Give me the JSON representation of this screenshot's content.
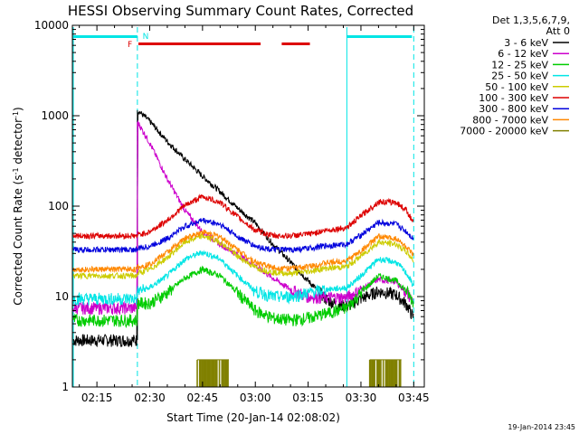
{
  "chart_data": {
    "type": "line",
    "title": "HESSI Observing Summary Count Rates, Corrected",
    "xlabel": "Start Time (20-Jan-14 02:08:02)",
    "ylabel": "Corrected Count Rate (s⁻¹ detector⁻¹)",
    "ylabel_main": "Corrected Count Rate (s",
    "ylabel_sup1": "-1",
    "ylabel_mid": " detector",
    "ylabel_sup2": "-1",
    "ylabel_end": ")",
    "y_scale": "log",
    "ylim": [
      1,
      10000
    ],
    "xlim_min": [
      8.03,
      108
    ],
    "x_ticks": [
      {
        "m": 15,
        "label": "02:15"
      },
      {
        "m": 30,
        "label": "02:30"
      },
      {
        "m": 45,
        "label": "02:45"
      },
      {
        "m": 60,
        "label": "03:00"
      },
      {
        "m": 75,
        "label": "03:15"
      },
      {
        "m": 90,
        "label": "03:30"
      },
      {
        "m": 105,
        "label": "03:45"
      }
    ],
    "y_ticks": [
      {
        "v": 1,
        "label": "1"
      },
      {
        "v": 10,
        "label": "10"
      },
      {
        "v": 100,
        "label": "100"
      },
      {
        "v": 1000,
        "label": "1000"
      },
      {
        "v": 10000,
        "label": "10000"
      }
    ],
    "legend_header_1": "Det 1,3,5,6,7,9,",
    "legend_header_2": "Att 0",
    "legend_position": "outside-right",
    "timestamp": "19-Jan-2014 23:45",
    "night_boundaries_min": [
      8.3,
      26.5,
      86.0,
      105.0
    ],
    "night_boundary_style": {
      "solid": [
        8.3,
        86.0
      ],
      "dashed": [
        26.5,
        105.0
      ],
      "color": "#00e5e5"
    },
    "day_bars": [
      {
        "start": 8.3,
        "end": 26.5
      },
      {
        "start": 86.0,
        "end": 104.5
      }
    ],
    "day_bar_color": "#00e5e5",
    "flare_flag": {
      "label": "F",
      "segments": [
        [
          26.8,
          61.5
        ],
        [
          67.5,
          75.5
        ]
      ],
      "color": "#dd0000"
    },
    "n_flag": {
      "label": "N",
      "at": 27.2,
      "color": "#00e5e5"
    },
    "series": [
      {
        "name": "3 - 6 keV",
        "color": "#000000",
        "points": [
          [
            8.3,
            3.3
          ],
          [
            26.4,
            3.3
          ],
          [
            26.6,
            1150
          ],
          [
            30,
            870
          ],
          [
            35,
            520
          ],
          [
            40,
            330
          ],
          [
            45,
            215
          ],
          [
            50,
            145
          ],
          [
            55,
            95
          ],
          [
            60,
            65
          ],
          [
            65,
            38
          ],
          [
            70,
            24
          ],
          [
            75,
            15
          ],
          [
            80,
            9.5
          ],
          [
            83,
            8.2
          ],
          [
            86,
            7.8
          ],
          [
            90,
            9.5
          ],
          [
            95,
            11.5
          ],
          [
            100,
            10.5
          ],
          [
            103,
            8.2
          ],
          [
            105,
            5.8
          ]
        ]
      },
      {
        "name": "6 - 12 keV",
        "color": "#cc00cc",
        "points": [
          [
            8.3,
            7.5
          ],
          [
            26.4,
            7.5
          ],
          [
            26.6,
            850
          ],
          [
            30,
            500
          ],
          [
            35,
            200
          ],
          [
            40,
            90
          ],
          [
            45,
            52
          ],
          [
            50,
            38
          ],
          [
            55,
            29
          ],
          [
            60,
            22
          ],
          [
            65,
            16
          ],
          [
            70,
            12
          ],
          [
            75,
            10
          ],
          [
            80,
            9.8
          ],
          [
            86,
            9.8
          ],
          [
            90,
            12
          ],
          [
            95,
            15.5
          ],
          [
            100,
            14.5
          ],
          [
            103,
            11
          ],
          [
            105,
            8.8
          ]
        ]
      },
      {
        "name": "12 - 25 keV",
        "color": "#00cc00",
        "points": [
          [
            8.3,
            5.5
          ],
          [
            26.4,
            5.5
          ],
          [
            26.6,
            8.5
          ],
          [
            30,
            8.5
          ],
          [
            35,
            11
          ],
          [
            40,
            16
          ],
          [
            45,
            20
          ],
          [
            50,
            17
          ],
          [
            55,
            11
          ],
          [
            60,
            7
          ],
          [
            65,
            5.8
          ],
          [
            70,
            5.5
          ],
          [
            75,
            5.8
          ],
          [
            80,
            6.5
          ],
          [
            86,
            7.5
          ],
          [
            90,
            11
          ],
          [
            95,
            17
          ],
          [
            100,
            15
          ],
          [
            103,
            11.5
          ],
          [
            105,
            8.5
          ]
        ]
      },
      {
        "name": "25 - 50 keV",
        "color": "#00e5e5",
        "points": [
          [
            8.3,
            9.5
          ],
          [
            26.4,
            9.5
          ],
          [
            26.6,
            11.5
          ],
          [
            30,
            12.5
          ],
          [
            35,
            17
          ],
          [
            40,
            26
          ],
          [
            45,
            31
          ],
          [
            50,
            26
          ],
          [
            55,
            17
          ],
          [
            60,
            11.5
          ],
          [
            65,
            10
          ],
          [
            70,
            10
          ],
          [
            75,
            11
          ],
          [
            80,
            12
          ],
          [
            86,
            12.5
          ],
          [
            90,
            17
          ],
          [
            95,
            26
          ],
          [
            100,
            24
          ],
          [
            103,
            18
          ],
          [
            105,
            13
          ]
        ]
      },
      {
        "name": "50 - 100 keV",
        "color": "#cccc00",
        "points": [
          [
            8.3,
            17
          ],
          [
            26.4,
            17
          ],
          [
            26.6,
            18
          ],
          [
            30,
            20
          ],
          [
            35,
            27
          ],
          [
            40,
            40
          ],
          [
            45,
            47
          ],
          [
            50,
            40
          ],
          [
            55,
            28
          ],
          [
            60,
            21
          ],
          [
            65,
            18.5
          ],
          [
            70,
            18
          ],
          [
            75,
            19
          ],
          [
            80,
            20.5
          ],
          [
            86,
            21.5
          ],
          [
            90,
            28
          ],
          [
            95,
            40
          ],
          [
            100,
            38
          ],
          [
            103,
            31
          ],
          [
            105,
            25
          ]
        ]
      },
      {
        "name": "100 - 300 keV",
        "color": "#dd0000",
        "points": [
          [
            8.3,
            47
          ],
          [
            26.4,
            47
          ],
          [
            26.6,
            48
          ],
          [
            30,
            52
          ],
          [
            35,
            70
          ],
          [
            40,
            102
          ],
          [
            45,
            128
          ],
          [
            50,
            110
          ],
          [
            55,
            76
          ],
          [
            60,
            54
          ],
          [
            65,
            47
          ],
          [
            70,
            47
          ],
          [
            75,
            49
          ],
          [
            80,
            54
          ],
          [
            86,
            58
          ],
          [
            90,
            78
          ],
          [
            95,
            112
          ],
          [
            100,
            110
          ],
          [
            103,
            90
          ],
          [
            105,
            64
          ]
        ]
      },
      {
        "name": "300 - 800 keV",
        "color": "#0000dd",
        "points": [
          [
            8.3,
            33
          ],
          [
            26.4,
            33
          ],
          [
            26.6,
            34
          ],
          [
            30,
            36
          ],
          [
            35,
            44
          ],
          [
            40,
            60
          ],
          [
            45,
            70
          ],
          [
            50,
            63
          ],
          [
            55,
            46
          ],
          [
            60,
            36
          ],
          [
            65,
            33
          ],
          [
            70,
            33
          ],
          [
            75,
            34
          ],
          [
            80,
            36.5
          ],
          [
            86,
            38
          ],
          [
            90,
            48
          ],
          [
            95,
            66
          ],
          [
            100,
            63
          ],
          [
            103,
            52
          ],
          [
            105,
            43
          ]
        ]
      },
      {
        "name": "800 - 7000 keV",
        "color": "#ff8800",
        "points": [
          [
            8.3,
            20
          ],
          [
            26.4,
            20
          ],
          [
            26.6,
            21
          ],
          [
            30,
            23
          ],
          [
            35,
            31
          ],
          [
            40,
            44
          ],
          [
            45,
            52
          ],
          [
            50,
            46
          ],
          [
            55,
            33
          ],
          [
            60,
            24
          ],
          [
            65,
            21
          ],
          [
            70,
            20.5
          ],
          [
            75,
            21.5
          ],
          [
            80,
            23.5
          ],
          [
            86,
            25
          ],
          [
            90,
            32
          ],
          [
            95,
            46
          ],
          [
            100,
            44
          ],
          [
            103,
            35
          ],
          [
            105,
            28
          ]
        ]
      },
      {
        "name": "7000 - 20000 keV",
        "color": "#808000",
        "points": []
      }
    ],
    "step_bursts": [
      {
        "series": "7000 - 20000 keV",
        "start": 43.5,
        "end": 52.5,
        "level": 2
      },
      {
        "series": "7000 - 20000 keV",
        "start": 92.5,
        "end": 101.5,
        "level": 2
      }
    ]
  }
}
